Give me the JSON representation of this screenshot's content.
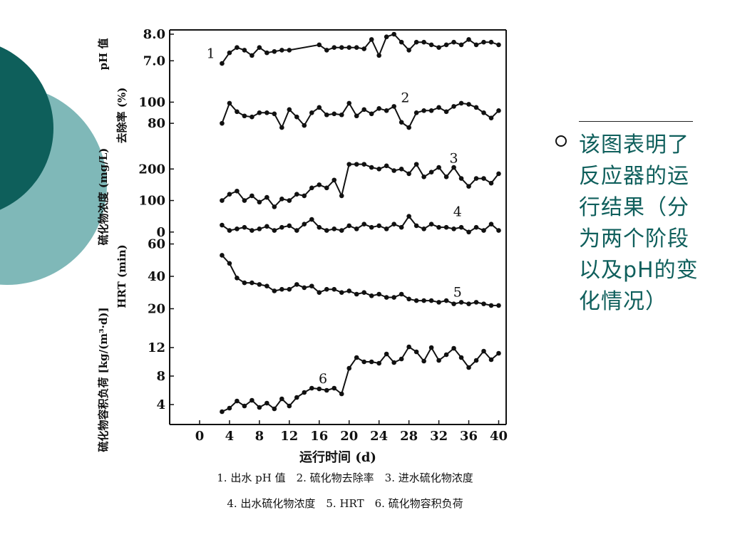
{
  "slide": {
    "note": "该图表明了反应器的运行结果（分为两个阶段以及pH的变化情况）",
    "theme_dark": "#0e5f5b",
    "theme_light": "#7fb8b8",
    "text_color": "#0f5f5c"
  },
  "chart_data": {
    "type": "line",
    "xlabel": "运行时间 (d)",
    "x_ticks": [
      "0",
      "4",
      "8",
      "12",
      "16",
      "20",
      "24",
      "28",
      "32",
      "36",
      "40"
    ],
    "xlim": [
      -4,
      41
    ],
    "series_color": "#111111",
    "caption": [
      "1. 出水 pH 值　2. 硫化物去除率　3. 进水硫化物浓度",
      "4. 出水硫化物浓度　5. HRT　6. 硫化物容积负荷"
    ],
    "panels": [
      {
        "ylabel": "pH 值",
        "ylim": [
          6.5,
          8.0
        ],
        "y_ticks": [
          {
            "v": 8.0,
            "t": "8.0"
          },
          {
            "v": 7.0,
            "t": "7.0"
          }
        ],
        "series": [
          {
            "name": "1",
            "label_at": [
              1.5,
              7.1
            ],
            "x": [
              3,
              4,
              5,
              6,
              7,
              8,
              9,
              10,
              11,
              12,
              16,
              17,
              18,
              19,
              20,
              21,
              22,
              23,
              24,
              25,
              26,
              27,
              28,
              29,
              30,
              31,
              32,
              33,
              34,
              35,
              36,
              37,
              38,
              39,
              40
            ],
            "y": [
              6.9,
              7.3,
              7.5,
              7.4,
              7.2,
              7.5,
              7.3,
              7.35,
              7.4,
              7.4,
              7.6,
              7.4,
              7.5,
              7.5,
              7.5,
              7.5,
              7.45,
              7.8,
              7.2,
              7.9,
              8.0,
              7.7,
              7.4,
              7.7,
              7.7,
              7.6,
              7.5,
              7.6,
              7.7,
              7.6,
              7.8,
              7.6,
              7.7,
              7.7,
              7.6
            ]
          }
        ]
      },
      {
        "ylabel": "去除率 (%)",
        "ylim": [
          70,
          105
        ],
        "y_ticks": [
          {
            "v": 100,
            "t": "100"
          },
          {
            "v": 80,
            "t": "80"
          }
        ],
        "series": [
          {
            "name": "2",
            "label_at": [
              27.5,
              100
            ],
            "x": [
              3,
              4,
              5,
              6,
              7,
              8,
              9,
              10,
              11,
              12,
              13,
              14,
              15,
              16,
              17,
              18,
              19,
              20,
              21,
              22,
              23,
              24,
              25,
              26,
              27,
              28,
              29,
              30,
              31,
              32,
              33,
              34,
              35,
              36,
              37,
              38,
              39,
              40
            ],
            "y": [
              80,
              99,
              91,
              87,
              86,
              90,
              90,
              89,
              76,
              93,
              86,
              78,
              90,
              95,
              88,
              89,
              88,
              99,
              87,
              93,
              89,
              94,
              92,
              96,
              81,
              76,
              90,
              92,
              92,
              95,
              91,
              96,
              99,
              98,
              95,
              90,
              85,
              92
            ]
          }
        ]
      },
      {
        "ylabel": "硫化物浓度 (mg/L)",
        "ylim": [
          -5,
          230
        ],
        "y_ticks": [
          {
            "v": 200,
            "t": "200"
          },
          {
            "v": 100,
            "t": "100"
          },
          {
            "v": 0,
            "t": "0"
          }
        ],
        "series": [
          {
            "name": "3",
            "label_at": [
              34,
              220
            ],
            "x": [
              3,
              4,
              5,
              6,
              7,
              8,
              9,
              10,
              11,
              12,
              13,
              14,
              15,
              16,
              17,
              18,
              19,
              20,
              21,
              22,
              23,
              24,
              25,
              26,
              27,
              28,
              29,
              30,
              31,
              32,
              33,
              34,
              35,
              36,
              37,
              38,
              39,
              40
            ],
            "y": [
              100,
              120,
              130,
              100,
              115,
              95,
              110,
              80,
              105,
              100,
              120,
              115,
              140,
              150,
              140,
              165,
              115,
              215,
              215,
              215,
              205,
              200,
              210,
              195,
              200,
              185,
              215,
              175,
              190,
              205,
              175,
              205,
              170,
              145,
              170,
              170,
              155,
              185
            ]
          },
          {
            "name": "4",
            "label_at": [
              34.5,
              50
            ],
            "x": [
              3,
              4,
              5,
              6,
              7,
              8,
              9,
              10,
              11,
              12,
              13,
              14,
              15,
              16,
              17,
              18,
              19,
              20,
              21,
              22,
              23,
              24,
              25,
              26,
              27,
              28,
              29,
              30,
              31,
              32,
              33,
              34,
              35,
              36,
              37,
              38,
              39,
              40
            ],
            "y": [
              22,
              5,
              10,
              15,
              5,
              10,
              18,
              5,
              15,
              20,
              5,
              25,
              40,
              15,
              5,
              10,
              5,
              20,
              10,
              25,
              15,
              20,
              10,
              25,
              15,
              50,
              20,
              10,
              25,
              15,
              15,
              10,
              15,
              0,
              15,
              5,
              25,
              5
            ]
          }
        ]
      },
      {
        "ylabel": "HRT (min)",
        "ylim": [
          18,
          62
        ],
        "y_ticks": [
          {
            "v": 60,
            "t": "60"
          },
          {
            "v": 40,
            "t": "40"
          },
          {
            "v": 20,
            "t": "20"
          }
        ],
        "series": [
          {
            "name": "5",
            "label_at": [
              34.5,
              27.5
            ],
            "x": [
              3,
              4,
              5,
              6,
              7,
              8,
              9,
              10,
              11,
              12,
              13,
              14,
              15,
              16,
              17,
              18,
              19,
              20,
              21,
              22,
              23,
              24,
              25,
              26,
              27,
              28,
              29,
              30,
              31,
              32,
              33,
              34,
              35,
              36,
              37,
              38,
              39,
              40
            ],
            "y": [
              53,
              48,
              39,
              36,
              36,
              35,
              34,
              31,
              32,
              32,
              35,
              33,
              34,
              30,
              32,
              32,
              30,
              31,
              29,
              30,
              28,
              29,
              27,
              27,
              29,
              26,
              25,
              25,
              25,
              24,
              25,
              23,
              24,
              23,
              24,
              23,
              22,
              22
            ]
          }
        ]
      },
      {
        "ylabel": "硫化物容积负荷 [kg/(m³·d)]",
        "ylim": [
          2,
          13
        ],
        "y_ticks": [
          {
            "v": 12,
            "t": "12"
          },
          {
            "v": 8,
            "t": "8"
          },
          {
            "v": 4,
            "t": "4"
          }
        ],
        "series": [
          {
            "name": "6",
            "label_at": [
              16.5,
              7
            ],
            "x": [
              3,
              4,
              5,
              6,
              7,
              8,
              9,
              10,
              11,
              12,
              13,
              14,
              15,
              16,
              17,
              18,
              19,
              20,
              21,
              22,
              23,
              24,
              25,
              26,
              27,
              28,
              29,
              30,
              31,
              32,
              33,
              34,
              35,
              36,
              37,
              38,
              39,
              40
            ],
            "y": [
              3,
              3.5,
              4.5,
              3.8,
              4.6,
              3.6,
              4.2,
              3.4,
              4.8,
              3.8,
              5.0,
              5.7,
              6.3,
              6.2,
              6.0,
              6.3,
              5.5,
              9.1,
              10.6,
              10.0,
              10.0,
              9.8,
              11.1,
              9.9,
              10.4,
              12.1,
              11.4,
              10.1,
              12.0,
              10.2,
              11.0,
              11.9,
              10.6,
              9.2,
              10.2,
              11.5,
              10.3,
              11.2
            ]
          }
        ]
      }
    ]
  }
}
